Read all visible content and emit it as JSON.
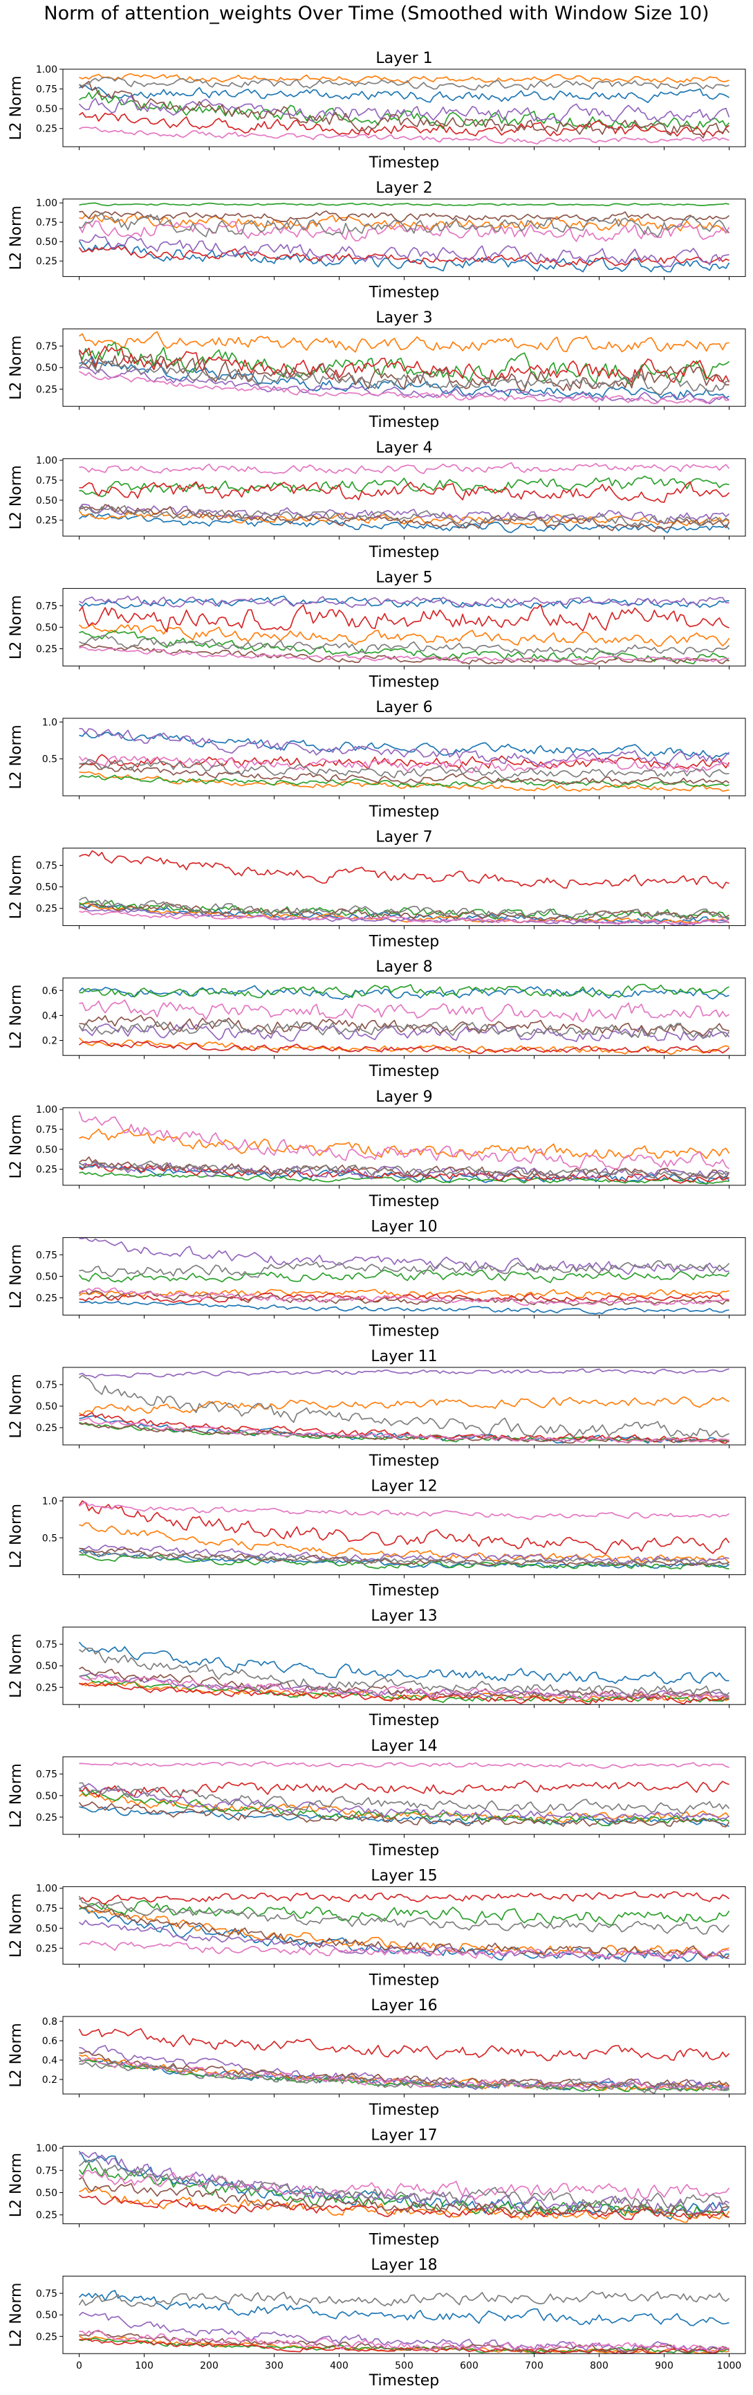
{
  "figure": {
    "title": "Norm of attention_weights Over Time (Smoothed with Window Size 10)"
  },
  "chart_data": {
    "type": "line",
    "subplot_count": 18,
    "shared_x": true,
    "xlabel": "Timestep",
    "ylabel": "L2 Norm",
    "xlim": [
      -25,
      1025
    ],
    "xticks": [
      0,
      100,
      200,
      300,
      400,
      500,
      600,
      700,
      800,
      900,
      1000
    ],
    "grid": false,
    "legend": "none",
    "palette": [
      "#1f77b4",
      "#ff7f0e",
      "#2ca02c",
      "#d62728",
      "#9467bd",
      "#8c564b",
      "#e377c2",
      "#7f7f7f"
    ],
    "note": "Each panel shows 8 smoothed series; values below are coarse per-series trend estimates (start, end) and fluctuation amplitude read off the axes.",
    "panels": [
      {
        "title": "Layer 1",
        "ylim": [
          0.02,
          1.0
        ],
        "yticks": [
          0.25,
          0.5,
          0.75,
          1.0
        ],
        "series": [
          {
            "start": 0.72,
            "end": 0.66,
            "noise": 0.05
          },
          {
            "start": 0.9,
            "end": 0.88,
            "noise": 0.03
          },
          {
            "start": 0.68,
            "end": 0.32,
            "noise": 0.07
          },
          {
            "start": 0.4,
            "end": 0.22,
            "noise": 0.06
          },
          {
            "start": 0.6,
            "end": 0.42,
            "noise": 0.07
          },
          {
            "start": 0.75,
            "end": 0.25,
            "noise": 0.08
          },
          {
            "start": 0.25,
            "end": 0.1,
            "noise": 0.03
          },
          {
            "start": 0.85,
            "end": 0.8,
            "noise": 0.04
          }
        ]
      },
      {
        "title": "Layer 2",
        "ylim": [
          0.05,
          1.05
        ],
        "yticks": [
          0.25,
          0.5,
          0.75,
          1.0
        ],
        "series": [
          {
            "start": 0.45,
            "end": 0.2,
            "noise": 0.06
          },
          {
            "start": 0.8,
            "end": 0.72,
            "noise": 0.06
          },
          {
            "start": 0.98,
            "end": 0.98,
            "noise": 0.01
          },
          {
            "start": 0.4,
            "end": 0.25,
            "noise": 0.05
          },
          {
            "start": 0.55,
            "end": 0.3,
            "noise": 0.07
          },
          {
            "start": 0.85,
            "end": 0.82,
            "noise": 0.04
          },
          {
            "start": 0.7,
            "end": 0.6,
            "noise": 0.08
          },
          {
            "start": 0.75,
            "end": 0.7,
            "noise": 0.08
          }
        ]
      },
      {
        "title": "Layer 3",
        "ylim": [
          0.05,
          0.95
        ],
        "yticks": [
          0.25,
          0.5,
          0.75
        ],
        "series": [
          {
            "start": 0.6,
            "end": 0.2,
            "noise": 0.05
          },
          {
            "start": 0.85,
            "end": 0.75,
            "noise": 0.06
          },
          {
            "start": 0.72,
            "end": 0.45,
            "noise": 0.09
          },
          {
            "start": 0.65,
            "end": 0.45,
            "noise": 0.09
          },
          {
            "start": 0.5,
            "end": 0.15,
            "noise": 0.04
          },
          {
            "start": 0.6,
            "end": 0.35,
            "noise": 0.09
          },
          {
            "start": 0.45,
            "end": 0.12,
            "noise": 0.03
          },
          {
            "start": 0.55,
            "end": 0.3,
            "noise": 0.06
          }
        ]
      },
      {
        "title": "Layer 4",
        "ylim": [
          0.05,
          1.02
        ],
        "yticks": [
          0.25,
          0.5,
          0.75,
          1.0
        ],
        "series": [
          {
            "start": 0.3,
            "end": 0.15,
            "noise": 0.04
          },
          {
            "start": 0.35,
            "end": 0.25,
            "noise": 0.04
          },
          {
            "start": 0.65,
            "end": 0.7,
            "noise": 0.06
          },
          {
            "start": 0.6,
            "end": 0.6,
            "noise": 0.07
          },
          {
            "start": 0.4,
            "end": 0.3,
            "noise": 0.05
          },
          {
            "start": 0.45,
            "end": 0.2,
            "noise": 0.05
          },
          {
            "start": 0.9,
            "end": 0.9,
            "noise": 0.04
          },
          {
            "start": 0.4,
            "end": 0.25,
            "noise": 0.05
          }
        ]
      },
      {
        "title": "Layer 5",
        "ylim": [
          0.05,
          0.95
        ],
        "yticks": [
          0.25,
          0.5,
          0.75
        ],
        "series": [
          {
            "start": 0.8,
            "end": 0.78,
            "noise": 0.04
          },
          {
            "start": 0.5,
            "end": 0.35,
            "noise": 0.05
          },
          {
            "start": 0.45,
            "end": 0.15,
            "noise": 0.04
          },
          {
            "start": 0.6,
            "end": 0.6,
            "noise": 0.09
          },
          {
            "start": 0.8,
            "end": 0.8,
            "noise": 0.04
          },
          {
            "start": 0.3,
            "end": 0.1,
            "noise": 0.03
          },
          {
            "start": 0.25,
            "end": 0.12,
            "noise": 0.02
          },
          {
            "start": 0.35,
            "end": 0.25,
            "noise": 0.04
          }
        ]
      },
      {
        "title": "Layer 6",
        "ylim": [
          0.0,
          1.05
        ],
        "yticks": [
          0.5,
          1.0
        ],
        "series": [
          {
            "start": 0.85,
            "end": 0.6,
            "noise": 0.05
          },
          {
            "start": 0.3,
            "end": 0.1,
            "noise": 0.03
          },
          {
            "start": 0.25,
            "end": 0.15,
            "noise": 0.03
          },
          {
            "start": 0.5,
            "end": 0.45,
            "noise": 0.06
          },
          {
            "start": 0.9,
            "end": 0.5,
            "noise": 0.06
          },
          {
            "start": 0.4,
            "end": 0.2,
            "noise": 0.04
          },
          {
            "start": 0.5,
            "end": 0.4,
            "noise": 0.06
          },
          {
            "start": 0.45,
            "end": 0.3,
            "noise": 0.05
          }
        ]
      },
      {
        "title": "Layer 7",
        "ylim": [
          0.05,
          0.95
        ],
        "yticks": [
          0.25,
          0.5,
          0.75
        ],
        "series": [
          {
            "start": 0.3,
            "end": 0.12,
            "noise": 0.03
          },
          {
            "start": 0.28,
            "end": 0.1,
            "noise": 0.02
          },
          {
            "start": 0.32,
            "end": 0.18,
            "noise": 0.04
          },
          {
            "start": 0.9,
            "end": 0.55,
            "noise": 0.05
          },
          {
            "start": 0.25,
            "end": 0.08,
            "noise": 0.02
          },
          {
            "start": 0.3,
            "end": 0.15,
            "noise": 0.04
          },
          {
            "start": 0.2,
            "end": 0.1,
            "noise": 0.02
          },
          {
            "start": 0.35,
            "end": 0.18,
            "noise": 0.04
          }
        ]
      },
      {
        "title": "Layer 8",
        "ylim": [
          0.08,
          0.7
        ],
        "yticks": [
          0.2,
          0.4,
          0.6
        ],
        "series": [
          {
            "start": 0.6,
            "end": 0.58,
            "noise": 0.03
          },
          {
            "start": 0.2,
            "end": 0.12,
            "noise": 0.02
          },
          {
            "start": 0.58,
            "end": 0.6,
            "noise": 0.03
          },
          {
            "start": 0.18,
            "end": 0.12,
            "noise": 0.02
          },
          {
            "start": 0.3,
            "end": 0.25,
            "noise": 0.04
          },
          {
            "start": 0.35,
            "end": 0.3,
            "noise": 0.04
          },
          {
            "start": 0.45,
            "end": 0.42,
            "noise": 0.05
          },
          {
            "start": 0.32,
            "end": 0.28,
            "noise": 0.04
          }
        ]
      },
      {
        "title": "Layer 9",
        "ylim": [
          0.05,
          1.02
        ],
        "yticks": [
          0.25,
          0.5,
          0.75,
          1.0
        ],
        "series": [
          {
            "start": 0.3,
            "end": 0.12,
            "noise": 0.04
          },
          {
            "start": 0.7,
            "end": 0.45,
            "noise": 0.06
          },
          {
            "start": 0.2,
            "end": 0.1,
            "noise": 0.02
          },
          {
            "start": 0.3,
            "end": 0.15,
            "noise": 0.04
          },
          {
            "start": 0.3,
            "end": 0.18,
            "noise": 0.05
          },
          {
            "start": 0.35,
            "end": 0.2,
            "noise": 0.05
          },
          {
            "start": 0.9,
            "end": 0.35,
            "noise": 0.07
          },
          {
            "start": 0.32,
            "end": 0.2,
            "noise": 0.04
          }
        ]
      },
      {
        "title": "Layer 10",
        "ylim": [
          0.05,
          0.95
        ],
        "yticks": [
          0.25,
          0.5,
          0.75
        ],
        "series": [
          {
            "start": 0.2,
            "end": 0.1,
            "noise": 0.02
          },
          {
            "start": 0.3,
            "end": 0.3,
            "noise": 0.03
          },
          {
            "start": 0.5,
            "end": 0.5,
            "noise": 0.04
          },
          {
            "start": 0.25,
            "end": 0.25,
            "noise": 0.03
          },
          {
            "start": 0.9,
            "end": 0.6,
            "noise": 0.05
          },
          {
            "start": 0.3,
            "end": 0.2,
            "noise": 0.03
          },
          {
            "start": 0.35,
            "end": 0.2,
            "noise": 0.03
          },
          {
            "start": 0.55,
            "end": 0.6,
            "noise": 0.05
          }
        ]
      },
      {
        "title": "Layer 11",
        "ylim": [
          0.05,
          0.95
        ],
        "yticks": [
          0.25,
          0.5,
          0.75
        ],
        "series": [
          {
            "start": 0.35,
            "end": 0.1,
            "noise": 0.03
          },
          {
            "start": 0.45,
            "end": 0.55,
            "noise": 0.04
          },
          {
            "start": 0.3,
            "end": 0.1,
            "noise": 0.02
          },
          {
            "start": 0.4,
            "end": 0.12,
            "noise": 0.03
          },
          {
            "start": 0.85,
            "end": 0.9,
            "noise": 0.02
          },
          {
            "start": 0.3,
            "end": 0.1,
            "noise": 0.02
          },
          {
            "start": 0.35,
            "end": 0.1,
            "noise": 0.02
          },
          {
            "start": 0.8,
            "end": 0.2,
            "noise": 0.06
          }
        ]
      },
      {
        "title": "Layer 12",
        "ylim": [
          0.0,
          1.05
        ],
        "yticks": [
          0.5,
          1.0
        ],
        "series": [
          {
            "start": 0.3,
            "end": 0.12,
            "noise": 0.03
          },
          {
            "start": 0.7,
            "end": 0.2,
            "noise": 0.04
          },
          {
            "start": 0.25,
            "end": 0.12,
            "noise": 0.03
          },
          {
            "start": 0.95,
            "end": 0.4,
            "noise": 0.07
          },
          {
            "start": 0.4,
            "end": 0.2,
            "noise": 0.04
          },
          {
            "start": 0.35,
            "end": 0.15,
            "noise": 0.03
          },
          {
            "start": 0.95,
            "end": 0.8,
            "noise": 0.03
          },
          {
            "start": 0.3,
            "end": 0.18,
            "noise": 0.03
          }
        ]
      },
      {
        "title": "Layer 13",
        "ylim": [
          0.05,
          0.95
        ],
        "yticks": [
          0.25,
          0.5,
          0.75
        ],
        "series": [
          {
            "start": 0.75,
            "end": 0.35,
            "noise": 0.05
          },
          {
            "start": 0.3,
            "end": 0.12,
            "noise": 0.03
          },
          {
            "start": 0.35,
            "end": 0.1,
            "noise": 0.03
          },
          {
            "start": 0.3,
            "end": 0.1,
            "noise": 0.03
          },
          {
            "start": 0.4,
            "end": 0.15,
            "noise": 0.03
          },
          {
            "start": 0.45,
            "end": 0.15,
            "noise": 0.04
          },
          {
            "start": 0.4,
            "end": 0.15,
            "noise": 0.04
          },
          {
            "start": 0.65,
            "end": 0.2,
            "noise": 0.05
          }
        ]
      },
      {
        "title": "Layer 14",
        "ylim": [
          0.05,
          0.95
        ],
        "yticks": [
          0.25,
          0.5,
          0.75
        ],
        "series": [
          {
            "start": 0.35,
            "end": 0.2,
            "noise": 0.03
          },
          {
            "start": 0.5,
            "end": 0.25,
            "noise": 0.04
          },
          {
            "start": 0.55,
            "end": 0.2,
            "noise": 0.04
          },
          {
            "start": 0.55,
            "end": 0.6,
            "noise": 0.05
          },
          {
            "start": 0.6,
            "end": 0.25,
            "noise": 0.04
          },
          {
            "start": 0.4,
            "end": 0.18,
            "noise": 0.04
          },
          {
            "start": 0.88,
            "end": 0.85,
            "noise": 0.02
          },
          {
            "start": 0.6,
            "end": 0.35,
            "noise": 0.05
          }
        ]
      },
      {
        "title": "Layer 15",
        "ylim": [
          0.05,
          1.02
        ],
        "yticks": [
          0.25,
          0.5,
          0.75,
          1.0
        ],
        "series": [
          {
            "start": 0.7,
            "end": 0.15,
            "noise": 0.05
          },
          {
            "start": 0.8,
            "end": 0.2,
            "noise": 0.05
          },
          {
            "start": 0.8,
            "end": 0.65,
            "noise": 0.06
          },
          {
            "start": 0.85,
            "end": 0.9,
            "noise": 0.04
          },
          {
            "start": 0.6,
            "end": 0.15,
            "noise": 0.04
          },
          {
            "start": 0.75,
            "end": 0.2,
            "noise": 0.05
          },
          {
            "start": 0.3,
            "end": 0.18,
            "noise": 0.04
          },
          {
            "start": 0.85,
            "end": 0.5,
            "noise": 0.05
          }
        ]
      },
      {
        "title": "Layer 16",
        "ylim": [
          0.05,
          0.85
        ],
        "yticks": [
          0.2,
          0.4,
          0.6,
          0.8
        ],
        "series": [
          {
            "start": 0.4,
            "end": 0.12,
            "noise": 0.03
          },
          {
            "start": 0.45,
            "end": 0.12,
            "noise": 0.03
          },
          {
            "start": 0.4,
            "end": 0.1,
            "noise": 0.02
          },
          {
            "start": 0.7,
            "end": 0.45,
            "noise": 0.05
          },
          {
            "start": 0.55,
            "end": 0.12,
            "noise": 0.04
          },
          {
            "start": 0.45,
            "end": 0.15,
            "noise": 0.03
          },
          {
            "start": 0.42,
            "end": 0.12,
            "noise": 0.03
          },
          {
            "start": 0.4,
            "end": 0.12,
            "noise": 0.04
          }
        ]
      },
      {
        "title": "Layer 17",
        "ylim": [
          0.15,
          1.02
        ],
        "yticks": [
          0.25,
          0.5,
          0.75,
          1.0
        ],
        "series": [
          {
            "start": 0.9,
            "end": 0.3,
            "noise": 0.06
          },
          {
            "start": 0.5,
            "end": 0.25,
            "noise": 0.05
          },
          {
            "start": 0.8,
            "end": 0.3,
            "noise": 0.06
          },
          {
            "start": 0.45,
            "end": 0.25,
            "noise": 0.04
          },
          {
            "start": 0.95,
            "end": 0.35,
            "noise": 0.06
          },
          {
            "start": 0.6,
            "end": 0.3,
            "noise": 0.05
          },
          {
            "start": 0.7,
            "end": 0.5,
            "noise": 0.06
          },
          {
            "start": 0.85,
            "end": 0.4,
            "noise": 0.06
          }
        ]
      },
      {
        "title": "Layer 18",
        "ylim": [
          0.05,
          0.95
        ],
        "yticks": [
          0.25,
          0.5,
          0.75
        ],
        "series": [
          {
            "start": 0.75,
            "end": 0.45,
            "noise": 0.05
          },
          {
            "start": 0.25,
            "end": 0.08,
            "noise": 0.02
          },
          {
            "start": 0.22,
            "end": 0.08,
            "noise": 0.02
          },
          {
            "start": 0.2,
            "end": 0.08,
            "noise": 0.02
          },
          {
            "start": 0.5,
            "end": 0.12,
            "noise": 0.04
          },
          {
            "start": 0.3,
            "end": 0.1,
            "noise": 0.03
          },
          {
            "start": 0.3,
            "end": 0.12,
            "noise": 0.04
          },
          {
            "start": 0.65,
            "end": 0.7,
            "noise": 0.05
          }
        ]
      }
    ]
  }
}
